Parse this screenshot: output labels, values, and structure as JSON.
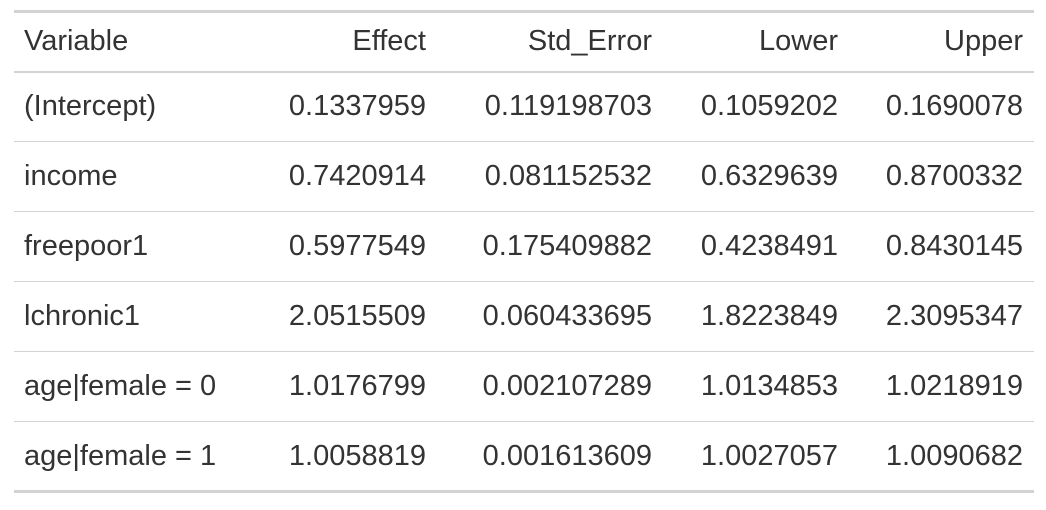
{
  "table": {
    "columns": [
      "Variable",
      "Effect",
      "Std_Error",
      "Lower",
      "Upper"
    ],
    "rows": [
      [
        "(Intercept)",
        "0.1337959",
        "0.119198703",
        "0.1059202",
        "0.1690078"
      ],
      [
        "income",
        "0.7420914",
        "0.081152532",
        "0.6329639",
        "0.8700332"
      ],
      [
        "freepoor1",
        "0.5977549",
        "0.175409882",
        "0.4238491",
        "0.8430145"
      ],
      [
        "lchronic1",
        "2.0515509",
        "0.060433695",
        "1.8223849",
        "2.3095347"
      ],
      [
        "age|female = 0",
        "1.0176799",
        "0.002107289",
        "1.0134853",
        "1.0218919"
      ],
      [
        "age|female = 1",
        "1.0058819",
        "0.001613609",
        "1.0027057",
        "1.0090682"
      ]
    ]
  }
}
